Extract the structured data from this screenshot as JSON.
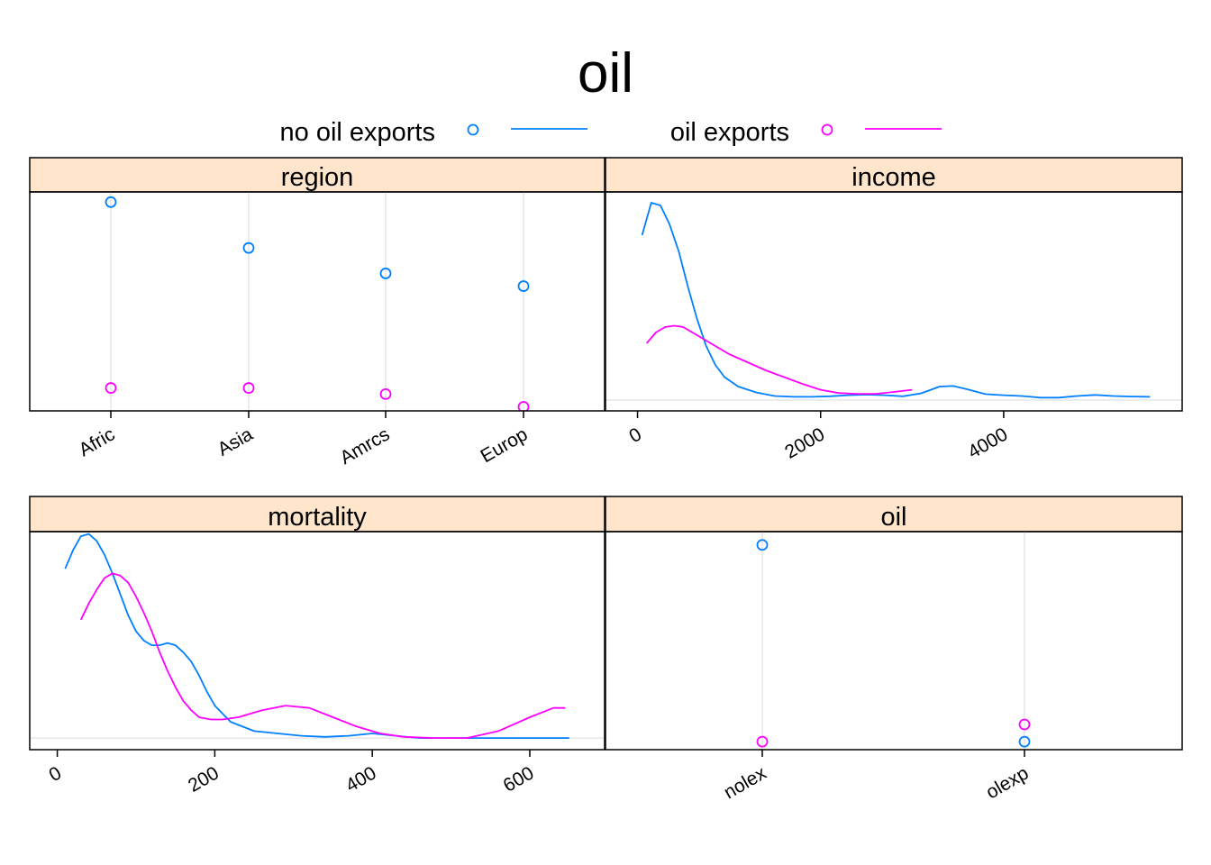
{
  "title": "oil",
  "legend": [
    {
      "label": "no oil exports",
      "color": "#0080ff"
    },
    {
      "label": "oil exports",
      "color": "#ff00ff"
    }
  ],
  "colors": {
    "strip": "#ffe5cc",
    "grid": "#e6e6e6",
    "frame": "#000000"
  },
  "chart_data": [
    {
      "type": "scatter",
      "panel": "region",
      "title": "region",
      "categories": [
        "Afric",
        "Asia",
        "Amrcs",
        "Europ"
      ],
      "ylim": [
        0,
        0.43
      ],
      "grid": "vertical",
      "series": [
        {
          "name": "no oil exports",
          "values": [
            0.41,
            0.32,
            0.27,
            0.245
          ]
        },
        {
          "name": "oil exports",
          "values": [
            0.045,
            0.045,
            0.033,
            0.008
          ]
        }
      ]
    },
    {
      "type": "line",
      "panel": "income",
      "title": "income",
      "xlim": [
        -350,
        5950
      ],
      "ylim": [
        -4e-05,
        0.00077
      ],
      "xticks": [
        0,
        2000,
        4000
      ],
      "baseline": 0,
      "series": [
        {
          "name": "no oil exports",
          "points": [
            [
              50,
              0.00061
            ],
            [
              150,
              0.00073
            ],
            [
              250,
              0.00072
            ],
            [
              350,
              0.00065
            ],
            [
              450,
              0.00055
            ],
            [
              550,
              0.00042
            ],
            [
              650,
              0.0003
            ],
            [
              750,
              0.0002
            ],
            [
              850,
              0.00013
            ],
            [
              950,
              8.5e-05
            ],
            [
              1100,
              5e-05
            ],
            [
              1300,
              2.8e-05
            ],
            [
              1500,
              1.5e-05
            ],
            [
              1700,
              1.2e-05
            ],
            [
              1900,
              1.2e-05
            ],
            [
              2100,
              1.4e-05
            ],
            [
              2300,
              1.8e-05
            ],
            [
              2500,
              2e-05
            ],
            [
              2700,
              1.8e-05
            ],
            [
              2900,
              1.4e-05
            ],
            [
              3100,
              2.5e-05
            ],
            [
              3300,
              5e-05
            ],
            [
              3450,
              5.2e-05
            ],
            [
              3600,
              4e-05
            ],
            [
              3800,
              2.2e-05
            ],
            [
              4000,
              1.8e-05
            ],
            [
              4200,
              1.5e-05
            ],
            [
              4400,
              9e-06
            ],
            [
              4600,
              9e-06
            ],
            [
              4800,
              1.5e-05
            ],
            [
              5000,
              1.9e-05
            ],
            [
              5200,
              1.5e-05
            ],
            [
              5400,
              1.3e-05
            ],
            [
              5600,
              1.2e-05
            ]
          ]
        },
        {
          "name": "oil exports",
          "points": [
            [
              100,
              0.00021
            ],
            [
              200,
              0.00025
            ],
            [
              300,
              0.00027
            ],
            [
              400,
              0.000275
            ],
            [
              500,
              0.00027
            ],
            [
              600,
              0.00025
            ],
            [
              800,
              0.00021
            ],
            [
              1000,
              0.00017
            ],
            [
              1200,
              0.00014
            ],
            [
              1400,
              0.00011
            ],
            [
              1600,
              8.5e-05
            ],
            [
              1800,
              6e-05
            ],
            [
              2000,
              3.8e-05
            ],
            [
              2200,
              2.6e-05
            ],
            [
              2400,
              2.3e-05
            ],
            [
              2600,
              2.3e-05
            ],
            [
              2800,
              3e-05
            ],
            [
              3000,
              3.8e-05
            ]
          ]
        }
      ]
    },
    {
      "type": "line",
      "panel": "mortality",
      "title": "mortality",
      "xlim": [
        -35,
        695
      ],
      "ylim": [
        -0.0005,
        0.0089
      ],
      "xticks": [
        0,
        200,
        400,
        600
      ],
      "baseline": 0,
      "series": [
        {
          "name": "no oil exports",
          "points": [
            [
              10,
              0.0073
            ],
            [
              20,
              0.0081
            ],
            [
              30,
              0.0087
            ],
            [
              40,
              0.0088
            ],
            [
              50,
              0.0085
            ],
            [
              60,
              0.0079
            ],
            [
              70,
              0.0071
            ],
            [
              80,
              0.0062
            ],
            [
              90,
              0.0053
            ],
            [
              100,
              0.0046
            ],
            [
              110,
              0.0042
            ],
            [
              120,
              0.004
            ],
            [
              130,
              0.004
            ],
            [
              140,
              0.0041
            ],
            [
              150,
              0.004
            ],
            [
              160,
              0.0037
            ],
            [
              170,
              0.0033
            ],
            [
              180,
              0.0027
            ],
            [
              190,
              0.002
            ],
            [
              200,
              0.0014
            ],
            [
              220,
              0.0007
            ],
            [
              250,
              0.0003
            ],
            [
              280,
              0.0002
            ],
            [
              310,
              0.0001
            ],
            [
              340,
              5e-05
            ],
            [
              370,
              0.0001
            ],
            [
              400,
              0.0002
            ],
            [
              430,
              0.0001
            ],
            [
              460,
              0
            ],
            [
              500,
              0
            ],
            [
              550,
              0
            ],
            [
              600,
              0
            ],
            [
              650,
              0
            ]
          ]
        },
        {
          "name": "oil exports",
          "points": [
            [
              30,
              0.0051
            ],
            [
              40,
              0.0058
            ],
            [
              50,
              0.0064
            ],
            [
              60,
              0.0069
            ],
            [
              70,
              0.0071
            ],
            [
              80,
              0.007
            ],
            [
              90,
              0.0067
            ],
            [
              100,
              0.0061
            ],
            [
              110,
              0.0054
            ],
            [
              120,
              0.0046
            ],
            [
              130,
              0.0037
            ],
            [
              140,
              0.0029
            ],
            [
              150,
              0.0022
            ],
            [
              160,
              0.0016
            ],
            [
              170,
              0.0012
            ],
            [
              180,
              0.0009
            ],
            [
              195,
              0.0008
            ],
            [
              210,
              0.0008
            ],
            [
              230,
              0.0009
            ],
            [
              260,
              0.0012
            ],
            [
              290,
              0.0014
            ],
            [
              320,
              0.0013
            ],
            [
              350,
              0.0009
            ],
            [
              380,
              0.0005
            ],
            [
              410,
              0.0002
            ],
            [
              440,
              5e-05
            ],
            [
              480,
              0
            ],
            [
              520,
              0
            ],
            [
              560,
              0.0003
            ],
            [
              600,
              0.0009
            ],
            [
              630,
              0.0013
            ],
            [
              645,
              0.0013
            ]
          ]
        }
      ]
    },
    {
      "type": "scatter",
      "panel": "oil",
      "title": "oil",
      "categories": [
        "nolex",
        "olexp"
      ],
      "ylim": [
        -0.03,
        0.79
      ],
      "grid": "vertical",
      "series": [
        {
          "name": "no oil exports",
          "values": [
            0.74,
            0.0
          ]
        },
        {
          "name": "oil exports",
          "values": [
            0.0,
            0.065
          ]
        }
      ]
    }
  ]
}
